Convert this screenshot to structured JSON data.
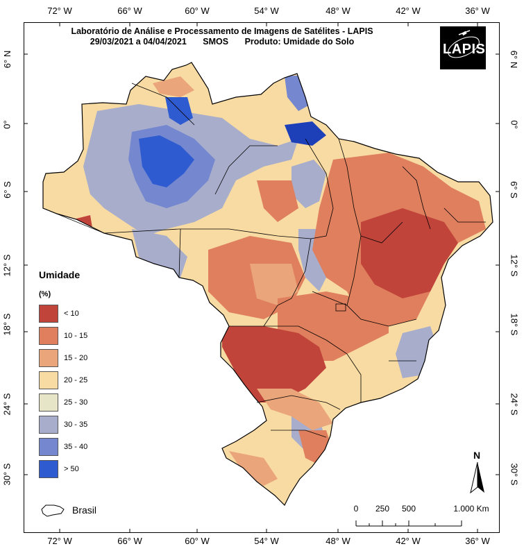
{
  "title": {
    "line1": "Laboratório de Análise e Processamento de Imagens de Satélites - LAPIS",
    "dates": "29/03/2021  a  04/04/2021",
    "sensor": "SMOS",
    "product": "Produto: Umidade do Solo"
  },
  "logo": {
    "text": "LAPIS",
    "icon": "satellite-icon"
  },
  "lon_ticks": [
    "72° W",
    "66° W",
    "60° W",
    "54° W",
    "48° W",
    "42° W",
    "36° W"
  ],
  "lat_ticks": [
    "6° N",
    "0°",
    "6° S",
    "12° S",
    "18° S",
    "24° S",
    "30° S"
  ],
  "legend": {
    "title": "Umidade",
    "unit": "(%)",
    "classes": [
      {
        "label": "< 10",
        "color": "#c1443a"
      },
      {
        "label": "10 - 15",
        "color": "#df7f5d"
      },
      {
        "label": "15 - 20",
        "color": "#eba57a"
      },
      {
        "label": "20 - 25",
        "color": "#f8dba2"
      },
      {
        "label": "25 - 30",
        "color": "#e7e5c7"
      },
      {
        "label": "30 - 35",
        "color": "#a7adcb"
      },
      {
        "label": "35 - 40",
        "color": "#7487cf"
      },
      {
        "label": "> 50",
        "color": "#2f5bd1"
      }
    ]
  },
  "boundary_legend": {
    "label": "Brasil"
  },
  "scale": {
    "labels": [
      "0",
      "250",
      "500",
      "1.000 Km"
    ],
    "values_km": [
      0,
      250,
      500,
      1000
    ]
  },
  "north": {
    "label": "N"
  }
}
